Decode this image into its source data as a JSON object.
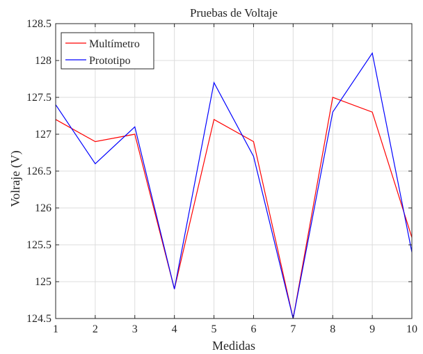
{
  "chart_data": {
    "type": "line",
    "title": "Pruebas de Voltaje",
    "xlabel": "Medidas",
    "ylabel": "Volraje (V)",
    "x": [
      1,
      2,
      3,
      4,
      5,
      6,
      7,
      8,
      9,
      10
    ],
    "xlim": [
      1,
      10
    ],
    "ylim": [
      124.5,
      128.5
    ],
    "xticks": [
      "1",
      "2",
      "3",
      "4",
      "5",
      "6",
      "7",
      "8",
      "9",
      "10"
    ],
    "yticks": [
      "124.5",
      "125",
      "125.5",
      "126",
      "126.5",
      "127",
      "127.5",
      "128",
      "128.5"
    ],
    "grid": true,
    "legend_position": "top-left",
    "series": [
      {
        "name": "Multímetro",
        "color": "#ff0000",
        "values": [
          127.2,
          126.9,
          127.0,
          124.9,
          127.2,
          126.9,
          124.5,
          127.5,
          127.3,
          125.6
        ]
      },
      {
        "name": "Prototipo",
        "color": "#0000ff",
        "values": [
          127.4,
          126.6,
          127.1,
          124.9,
          127.7,
          126.7,
          124.5,
          127.3,
          128.1,
          125.4
        ]
      }
    ]
  }
}
